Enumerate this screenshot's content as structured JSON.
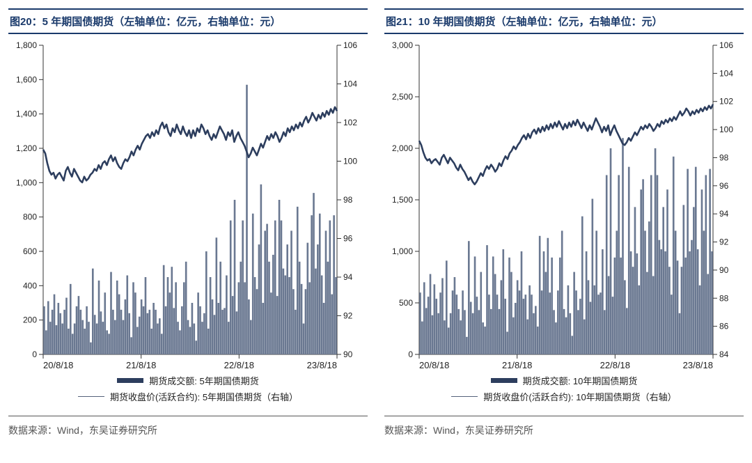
{
  "colors": {
    "brand": "#1a3a6b",
    "line_thick": "#2d3e5e",
    "line_thin": "#6a7891",
    "tick": "#333333",
    "grid": "#cccccc",
    "text": "#222222",
    "source_text": "#555555",
    "bg": "#ffffff"
  },
  "typography": {
    "title_fontsize": 15,
    "tick_fontsize": 12,
    "legend_fontsize": 13,
    "source_fontsize": 14,
    "title_weight": "bold"
  },
  "panels": [
    {
      "id": "p20",
      "title": "图20：5 年期国债期货（左轴单位：亿元，右轴单位：元）",
      "legend_bar": "期货成交额: 5年期国债期货",
      "legend_line": "期货收盘价(活跃合约): 5年期国债期货（右轴）",
      "source": "数据来源：Wind，东吴证券研究所",
      "chart": {
        "type": "combo-bar-line",
        "x_categories": [
          "20/8/18",
          "21/8/18",
          "22/8/18",
          "23/8/18"
        ],
        "y_left": {
          "min": 0,
          "max": 1800,
          "step": 200
        },
        "y_right": {
          "min": 90,
          "max": 106,
          "step": 2
        },
        "bar_color": "#6a7891",
        "bar_width": 0.9,
        "line_color": "#2d3e5e",
        "line_width": 2.6,
        "tick_len": 6,
        "outer_tick_len": 8,
        "bars": [
          280,
          140,
          310,
          190,
          260,
          350,
          170,
          300,
          240,
          180,
          260,
          330,
          150,
          410,
          120,
          180,
          280,
          340,
          260,
          200,
          150,
          280,
          190,
          70,
          500,
          230,
          180,
          430,
          250,
          190,
          360,
          140,
          120,
          480,
          260,
          200,
          430,
          350,
          260,
          200,
          320,
          460,
          240,
          100,
          420,
          360,
          160,
          220,
          320,
          280,
          450,
          240,
          260,
          150,
          300,
          260,
          180,
          210,
          120,
          520,
          280,
          450,
          360,
          510,
          270,
          420,
          190,
          140,
          280,
          420,
          540,
          200,
          160,
          300,
          180,
          80,
          360,
          280,
          190,
          240,
          600,
          150,
          450,
          320,
          230,
          680,
          300,
          540,
          260,
          270,
          460,
          190,
          780,
          340,
          900,
          250,
          420,
          540,
          780,
          420,
          1570,
          320,
          200,
          820,
          450,
          380,
          640,
          990,
          300,
          720,
          760,
          540,
          360,
          580,
          780,
          340,
          900,
          780,
          500,
          460,
          640,
          450,
          720,
          380,
          260,
          860,
          540,
          410,
          180,
          380,
          650,
          420,
          810,
          940,
          500,
          640,
          820,
          460,
          300,
          720,
          540,
          780,
          350,
          810,
          450
        ],
        "line": [
          100.6,
          100.4,
          99.9,
          99.5,
          99.3,
          99.4,
          99.1,
          99.3,
          99.4,
          99.2,
          99.0,
          99.5,
          99.7,
          99.4,
          99.2,
          99.6,
          99.4,
          99.2,
          99.0,
          98.9,
          99.2,
          99.0,
          99.1,
          99.3,
          99.4,
          99.6,
          99.5,
          99.8,
          99.6,
          99.9,
          100.0,
          99.8,
          100.1,
          100.3,
          100.0,
          100.2,
          99.9,
          99.7,
          99.6,
          99.9,
          100.1,
          100.0,
          100.2,
          100.5,
          100.3,
          100.6,
          100.8,
          100.6,
          100.9,
          101.1,
          101.3,
          101.4,
          101.2,
          101.5,
          101.3,
          101.6,
          101.4,
          101.8,
          102.0,
          101.7,
          101.9,
          101.5,
          101.3,
          101.7,
          101.5,
          101.9,
          101.6,
          101.4,
          101.8,
          101.5,
          101.3,
          101.6,
          101.2,
          101.6,
          101.3,
          101.7,
          101.5,
          101.9,
          101.7,
          101.4,
          101.6,
          101.3,
          101.1,
          101.4,
          101.2,
          101.5,
          101.8,
          101.6,
          101.4,
          101.1,
          101.5,
          101.3,
          101.6,
          101.0,
          101.3,
          101.5,
          101.2,
          101.0,
          100.8,
          100.5,
          100.2,
          100.4,
          100.7,
          100.5,
          100.3,
          100.6,
          100.9,
          100.7,
          101.0,
          101.3,
          101.1,
          101.4,
          101.2,
          101.5,
          101.3,
          101.0,
          101.2,
          101.5,
          101.3,
          101.7,
          101.5,
          101.8,
          101.6,
          101.9,
          101.7,
          102.0,
          101.8,
          102.1,
          102.3,
          102.0,
          102.2,
          102.5,
          102.3,
          102.1,
          102.4,
          102.2,
          102.5,
          102.3,
          102.6,
          102.4,
          102.7,
          102.5,
          102.8,
          102.6
        ]
      }
    },
    {
      "id": "p21",
      "title": "图21：10 年期国债期货（左轴单位：亿元，右轴单位：元）",
      "legend_bar": "期货成交额: 10年期国债期货",
      "legend_line": "期货收盘价(活跃合约): 10年期国债期货（右轴）",
      "source": "数据来源：Wind，东吴证券研究所",
      "chart": {
        "type": "combo-bar-line",
        "x_categories": [
          "20/8/18",
          "21/8/18",
          "22/8/18",
          "23/8/18"
        ],
        "y_left": {
          "min": 0,
          "max": 3000,
          "step": 500
        },
        "y_right": {
          "min": 84,
          "max": 106,
          "step": 2
        },
        "bar_color": "#6a7891",
        "bar_width": 0.9,
        "line_color": "#2d3e5e",
        "line_width": 2.6,
        "tick_len": 6,
        "outer_tick_len": 8,
        "bars": [
          600,
          320,
          700,
          450,
          560,
          780,
          380,
          680,
          540,
          400,
          600,
          740,
          330,
          910,
          260,
          400,
          620,
          750,
          580,
          440,
          330,
          620,
          430,
          170,
          1100,
          510,
          400,
          950,
          560,
          430,
          800,
          310,
          270,
          1060,
          580,
          440,
          950,
          780,
          580,
          440,
          720,
          1020,
          540,
          220,
          940,
          800,
          360,
          500,
          720,
          620,
          1000,
          540,
          580,
          340,
          670,
          580,
          400,
          470,
          270,
          1150,
          620,
          1000,
          800,
          1130,
          600,
          940,
          430,
          310,
          620,
          940,
          1200,
          440,
          360,
          670,
          400,
          180,
          800,
          620,
          430,
          540,
          1340,
          340,
          1000,
          720,
          510,
          1510,
          670,
          1200,
          580,
          600,
          1020,
          430,
          1740,
          760,
          2000,
          560,
          940,
          1200,
          1740,
          940,
          2100,
          720,
          450,
          1820,
          1000,
          850,
          1430,
          980,
          670,
          1600,
          1700,
          1200,
          800,
          1290,
          1740,
          760,
          2000,
          1740,
          1110,
          1020,
          1430,
          1000,
          1600,
          850,
          580,
          1920,
          1200,
          910,
          400,
          850,
          1450,
          940,
          1800,
          1000,
          1110,
          1430,
          1820,
          1020,
          670,
          1600,
          1200,
          1740,
          780,
          1800,
          1000
        ],
        "line": [
          99.2,
          98.9,
          98.4,
          98.0,
          97.8,
          97.9,
          97.6,
          97.8,
          97.9,
          97.7,
          97.5,
          98.0,
          98.2,
          97.9,
          97.6,
          98.0,
          97.8,
          97.6,
          97.3,
          97.1,
          97.5,
          97.2,
          97.0,
          96.7,
          96.4,
          96.6,
          96.3,
          96.1,
          96.3,
          96.6,
          96.9,
          96.7,
          97.1,
          97.4,
          97.2,
          97.5,
          97.3,
          97.0,
          97.2,
          97.6,
          97.4,
          97.8,
          98.1,
          97.9,
          98.3,
          98.5,
          98.8,
          98.6,
          98.9,
          99.1,
          99.4,
          99.6,
          99.3,
          99.7,
          99.4,
          99.8,
          100.0,
          99.7,
          100.1,
          99.8,
          100.2,
          99.9,
          100.3,
          100.0,
          100.4,
          100.1,
          100.5,
          100.2,
          100.6,
          100.3,
          100.0,
          100.4,
          100.1,
          100.5,
          100.2,
          100.6,
          100.3,
          100.7,
          100.4,
          100.1,
          100.5,
          100.2,
          99.9,
          100.3,
          100.0,
          100.4,
          100.8,
          100.5,
          100.2,
          99.8,
          100.2,
          99.9,
          100.3,
          99.6,
          100.0,
          100.3,
          99.9,
          99.6,
          99.3,
          99.0,
          98.9,
          99.1,
          99.4,
          99.2,
          99.5,
          99.8,
          99.6,
          99.9,
          100.2,
          100.0,
          100.3,
          100.1,
          100.4,
          100.2,
          99.9,
          100.1,
          100.4,
          100.2,
          100.6,
          100.4,
          100.7,
          100.5,
          100.8,
          100.6,
          100.9,
          100.7,
          101.0,
          101.3,
          101.0,
          101.2,
          101.5,
          101.3,
          101.0,
          101.3,
          101.1,
          101.4,
          101.2,
          101.5,
          101.3,
          101.6,
          101.4,
          101.7,
          101.5,
          101.8
        ]
      }
    }
  ]
}
